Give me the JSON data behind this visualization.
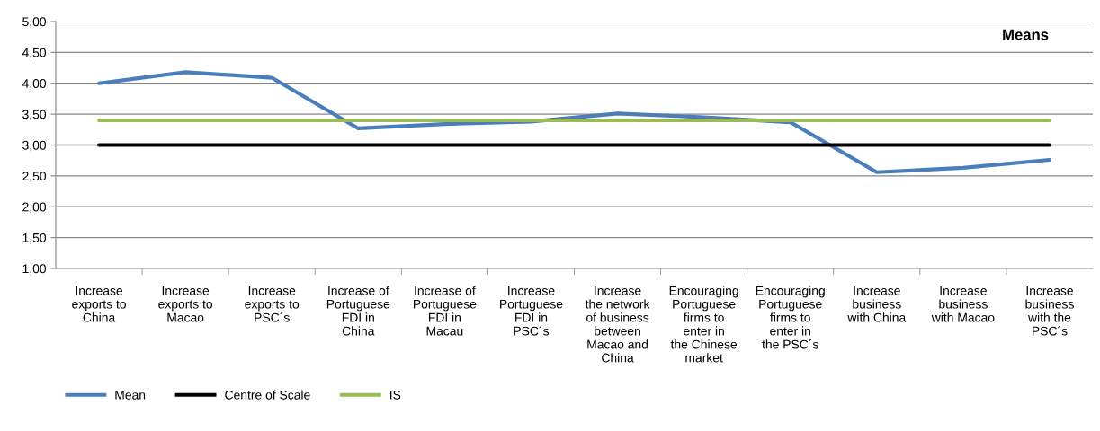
{
  "chart_data": {
    "type": "line",
    "title": "Means",
    "categories": [
      "Increase exports to China",
      "Increase exports to Macao",
      "Increase exports to PSC´s",
      "Increase of Portuguese FDI in China",
      "Increase of Portuguese FDI in Macau",
      "Increase Portuguese FDI in PSC´s",
      "Increase the network of business between Macao and China",
      "Encouraging Portuguese firms to enter in the Chinese market",
      "Encouraging Portuguese firms to enter in the PSC´s",
      "Increase business with China",
      "Increase business with Macao",
      "Increase business with the PSC´s"
    ],
    "series": [
      {
        "name": "Mean",
        "color": "#4a7ebb",
        "values": [
          4.0,
          4.18,
          4.09,
          3.27,
          3.34,
          3.38,
          3.51,
          3.45,
          3.37,
          2.56,
          2.63,
          2.76
        ]
      },
      {
        "name": "Centre of Scale",
        "color": "#000000",
        "values": [
          3,
          3,
          3,
          3,
          3,
          3,
          3,
          3,
          3,
          3,
          3,
          3
        ]
      },
      {
        "name": "IS",
        "color": "#9bbb59",
        "values": [
          3.4,
          3.4,
          3.4,
          3.4,
          3.4,
          3.4,
          3.4,
          3.4,
          3.4,
          3.4,
          3.4,
          3.4
        ]
      }
    ],
    "ylim": [
      1,
      5
    ],
    "yticks": [
      {
        "value": 1,
        "label": "1,00"
      },
      {
        "value": 1.5,
        "label": "1,50"
      },
      {
        "value": 2,
        "label": "2,00"
      },
      {
        "value": 2.5,
        "label": "2,50"
      },
      {
        "value": 3,
        "label": "3,00"
      },
      {
        "value": 3.5,
        "label": "3,50"
      },
      {
        "value": 4,
        "label": "4,00"
      },
      {
        "value": 4.5,
        "label": "4,50"
      },
      {
        "value": 5,
        "label": "5,00"
      }
    ],
    "grid": "y",
    "legend": "bottom left",
    "marker": "none",
    "line_style": "solid"
  }
}
